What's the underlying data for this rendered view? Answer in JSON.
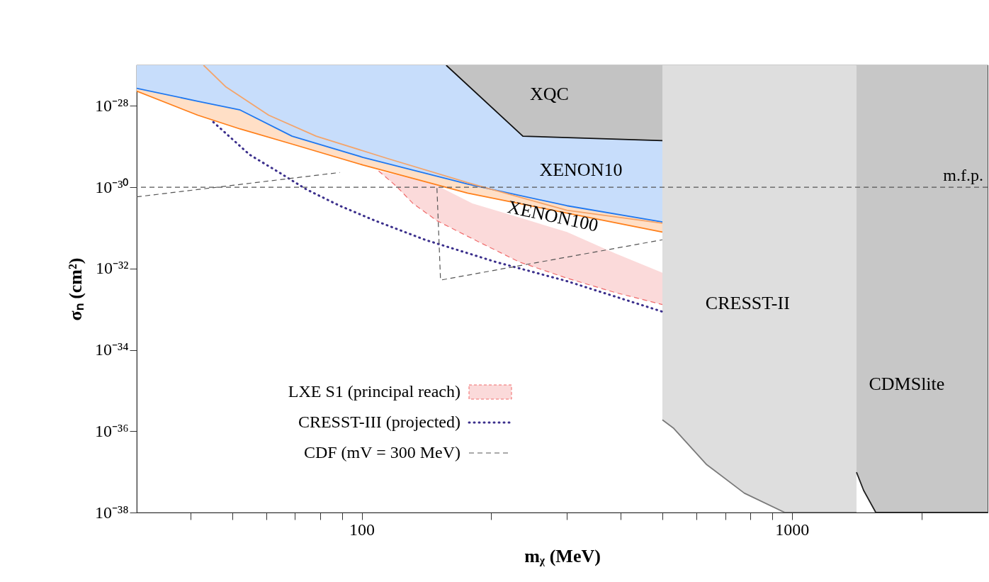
{
  "chart_data": {
    "type": "line",
    "xlabel": "mᵪ (MeV)",
    "ylabel": "σₙ (cm²)",
    "log": "xy",
    "legend": "bottom left",
    "marker": "none",
    "xlim": [
      30,
      2850
    ],
    "ylim": [
      1e-38,
      1e-27
    ],
    "xticks": [
      {
        "value": 40,
        "label": null
      },
      {
        "value": 50,
        "label": null
      },
      {
        "value": 60,
        "label": null
      },
      {
        "value": 70,
        "label": null
      },
      {
        "value": 80,
        "label": null
      },
      {
        "value": 90,
        "label": null
      },
      100,
      {
        "value": 200,
        "label": null
      },
      {
        "value": 300,
        "label": null
      },
      {
        "value": 400,
        "label": null
      },
      {
        "value": 500,
        "label": null
      },
      {
        "value": 600,
        "label": null
      },
      {
        "value": 700,
        "label": null
      },
      {
        "value": 800,
        "label": null
      },
      {
        "value": 900,
        "label": null
      },
      1000,
      {
        "value": 2000,
        "label": null
      }
    ],
    "yticks": [
      {
        "value": 1e-38,
        "label": "10⁻³⁸"
      },
      {
        "value": 1e-36,
        "label": "10⁻³⁶"
      },
      {
        "value": 1e-34,
        "label": "10⁻³⁴"
      },
      {
        "value": 1e-32,
        "label": "10⁻³²"
      },
      {
        "value": 1e-30,
        "label": "10⁻³⁰"
      },
      {
        "value": 1e-28,
        "label": "10⁻²⁸"
      }
    ],
    "series": [
      {
        "color": "#7a7a7a",
        "line_style": "solid",
        "x": [
          500,
          530,
          634,
          775,
          963,
          1413
        ],
        "values": [
          1.9e-36,
          1.2e-36,
          1.5e-37,
          3e-38,
          1e-38,
          1e-38
        ],
        "lower": [
          1.9e-36,
          1.2e-36,
          1.5e-37,
          3e-38,
          1e-38,
          1e-38
        ],
        "upper": [
          1e-27,
          1e-27,
          1e-27,
          1e-27,
          1e-27,
          1e-27
        ]
      },
      {
        "color": "#1f1f1f",
        "line_style": "solid",
        "x": [
          1413,
          1468,
          1567,
          2850
        ],
        "values": [
          9.8e-38,
          3.5e-38,
          1e-38,
          1e-38
        ],
        "lower": [
          9.8e-38,
          3.5e-38,
          1e-38,
          1e-38
        ],
        "upper": [
          1e-27,
          1e-27,
          1e-27,
          1e-27
        ]
      },
      {
        "color": "#1f78f0",
        "line_style": "solid",
        "x": [
          30,
          41.6,
          52.2,
          68.9,
          100.8,
          176.2,
          300,
          500
        ],
        "values": [
          2.7e-28,
          1.3e-28,
          7.9e-29,
          1.8e-29,
          5.4e-30,
          1.2e-30,
          3.5e-31,
          1.4e-31
        ],
        "lower": [
          2.7e-28,
          1.3e-28,
          7.9e-29,
          1.8e-29,
          5.4e-30,
          1.2e-30,
          3.5e-31,
          1.4e-31
        ],
        "upper": [
          1e-27,
          1e-27,
          1e-27,
          1e-27,
          1e-27,
          1e-27,
          1e-27,
          1e-27
        ]
      },
      {
        "color": "#101010",
        "line_style": "solid",
        "x": [
          157.2,
          237,
          500
        ],
        "values": [
          1e-27,
          1.8e-29,
          1.4e-29
        ],
        "lower": [
          1e-27,
          1.8e-29,
          1.4e-29
        ],
        "upper": [
          1e-27,
          1e-27,
          1e-27
        ]
      },
      {
        "color": "#ff7f1a",
        "line_style": "solid",
        "x": [
          30,
          41.6,
          52.2,
          68.9,
          100.8,
          176.2,
          300,
          500
        ],
        "values": [
          2.3e-28,
          5.9e-29,
          2.7e-29,
          1.15e-29,
          3.5e-30,
          7.2e-31,
          2.3e-31,
          7.9e-32
        ],
        "lower": [
          2.3e-28,
          5.9e-29,
          2.7e-29,
          1.15e-29,
          3.5e-30,
          7.2e-31,
          2.3e-31,
          7.9e-32
        ],
        "upper": [
          2.7e-28,
          1.3e-28,
          7.9e-29,
          1.8e-29,
          5.4e-30,
          1.2e-30,
          3.5e-31,
          1.4e-31
        ]
      },
      {
        "color": "#f4a46a",
        "line_style": "solid",
        "x": [
          42.9,
          48.4,
          60.8,
          78.4,
          114.7,
          176.2,
          300,
          500
        ],
        "values": [
          1e-27,
          2.9e-28,
          5.9e-29,
          1.8e-29,
          5.1e-30,
          1.3e-30,
          2.7e-31,
          1.3e-31
        ]
      },
      {
        "name": "LXE S1 (principal reach)",
        "color": "#f06a6a",
        "line_style": "dashed",
        "x": [
          109.5,
          120.5,
          131.5,
          149.6,
          180.9,
          232.5,
          300,
          387,
          500
        ],
        "values": [
          2.5e-30,
          1.05e-30,
          4e-31,
          1.5e-31,
          5.4e-32,
          1.45e-32,
          5.8e-33,
          2.6e-33,
          1.3e-33
        ],
        "lower": [
          2.5e-30,
          1.05e-30,
          4e-31,
          1.5e-31,
          5.4e-32,
          1.45e-32,
          5.8e-33,
          2.6e-33,
          1.3e-33
        ],
        "upper": [
          2.5e-30,
          2e-30,
          1.6e-30,
          1.1e-30,
          4e-31,
          1.8e-31,
          7.9e-32,
          2.4e-32,
          7.9e-33
        ]
      },
      {
        "name": "CRESST-III (projected)",
        "color": "#3b2f8c",
        "line_style": "dotted",
        "x": [
          45.2,
          54.9,
          63.9,
          74.3,
          88.9,
          107.5,
          140.3,
          205,
          300,
          500
        ],
        "values": [
          4e-29,
          6.3e-30,
          2.4e-30,
          8.9e-31,
          3.5e-31,
          1.5e-31,
          5.1e-32,
          1.45e-32,
          4.9e-33,
          8.7e-34
        ]
      },
      {
        "name": "CDF (mV = 300 MeV)",
        "color": "#555555",
        "line_style": "dashed",
        "x": [
          30,
          88.9,
          120,
          149.6,
          152.5,
          500
        ],
        "values": [
          5.8e-31,
          2.3e-30,
          null,
          9.5e-31,
          5.2e-33,
          5.1e-32
        ]
      }
    ],
    "ref_lines": [
      {
        "axis": "y",
        "value": 1e-30,
        "label": "m.f.p.",
        "color": "#555555",
        "line_style": "dashed"
      }
    ],
    "annotations": [
      "XQC",
      "XENON10",
      "XENON100",
      "CRESST-II",
      "CDMSlite"
    ]
  }
}
